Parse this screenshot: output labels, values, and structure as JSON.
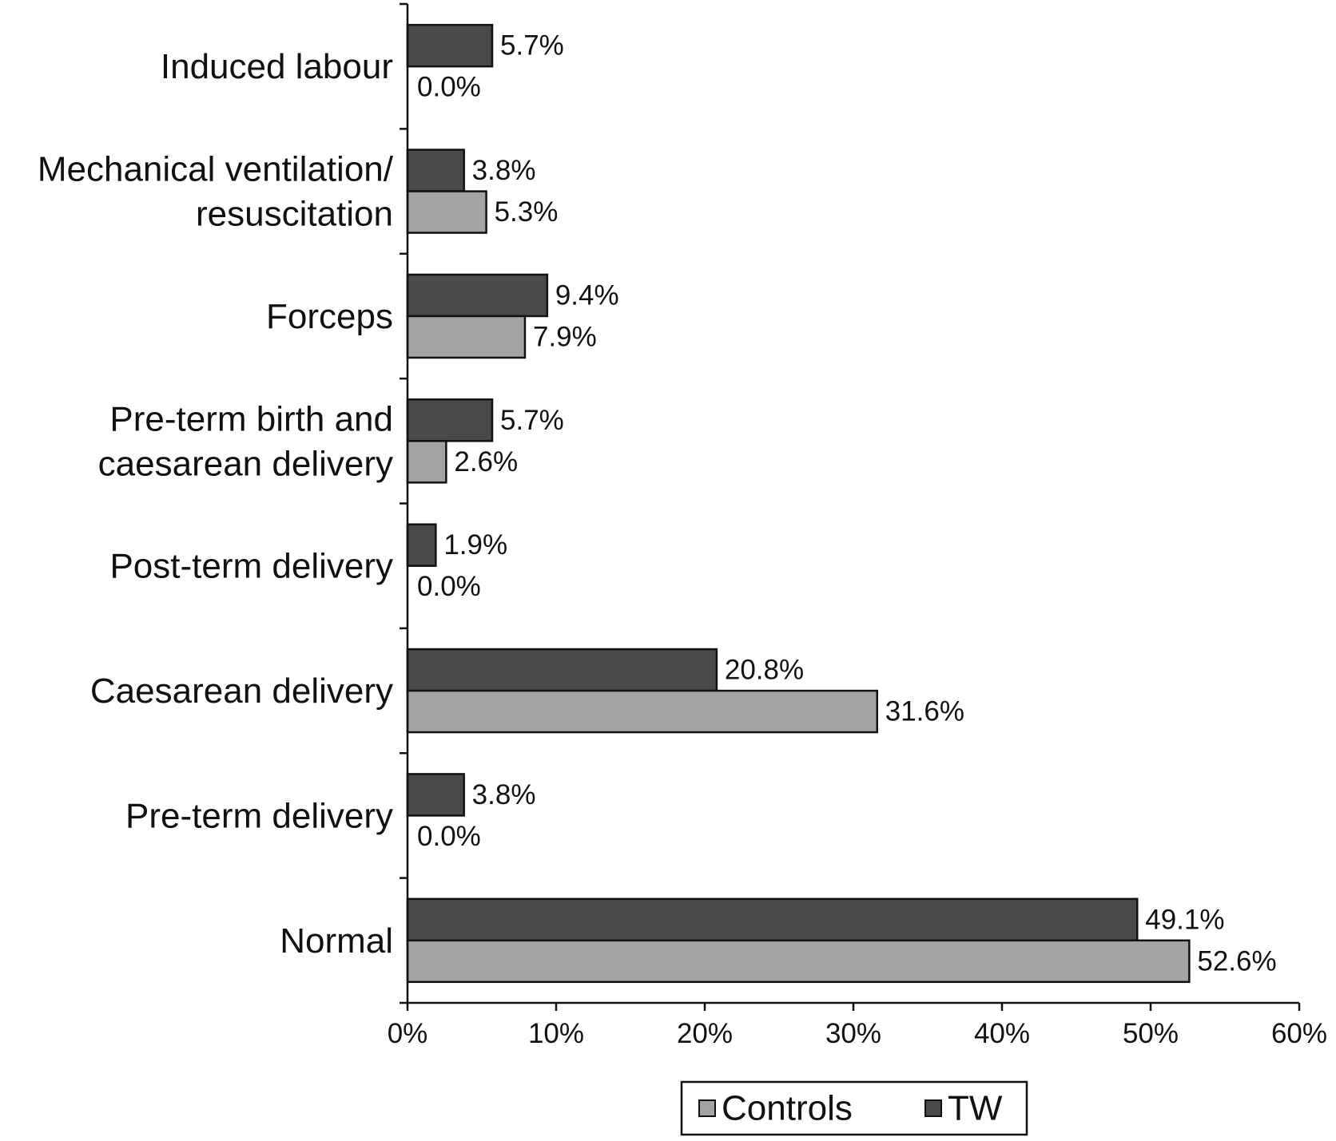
{
  "chart_data": {
    "type": "bar",
    "orientation": "horizontal",
    "categories": [
      [
        "Induced labour"
      ],
      [
        "Mechanical ventilation/",
        "resuscitation"
      ],
      [
        "Forceps"
      ],
      [
        "Pre-term birth and",
        "caesarean delivery"
      ],
      [
        "Post-term delivery"
      ],
      [
        "Caesarean delivery"
      ],
      [
        "Pre-term delivery"
      ],
      [
        "Normal"
      ]
    ],
    "series": [
      {
        "name": "TW",
        "color": "#4a4a4a",
        "values": [
          5.7,
          3.8,
          9.4,
          5.7,
          1.9,
          20.8,
          3.8,
          49.1
        ],
        "labels": [
          "5.7%",
          "3.8%",
          "9.4%",
          "5.7%",
          "1.9%",
          "20.8%",
          "3.8%",
          "49.1%"
        ]
      },
      {
        "name": "Controls",
        "color": "#a3a3a3",
        "values": [
          0.0,
          5.3,
          7.9,
          2.6,
          0.0,
          31.6,
          0.0,
          52.6
        ],
        "labels": [
          "0.0%",
          "5.3%",
          "7.9%",
          "2.6%",
          "0.0%",
          "31.6%",
          "0.0%",
          "52.6%"
        ]
      }
    ],
    "xlim": [
      0,
      60
    ],
    "xticks": [
      "0%",
      "10%",
      "20%",
      "30%",
      "40%",
      "50%",
      "60%"
    ],
    "xlabel": "",
    "ylabel": "",
    "title": "",
    "grid": false,
    "legend": {
      "placement": "bottom",
      "entries": [
        {
          "name": "Controls",
          "color": "#a3a3a3"
        },
        {
          "name": "TW",
          "color": "#4a4a4a"
        }
      ]
    }
  }
}
